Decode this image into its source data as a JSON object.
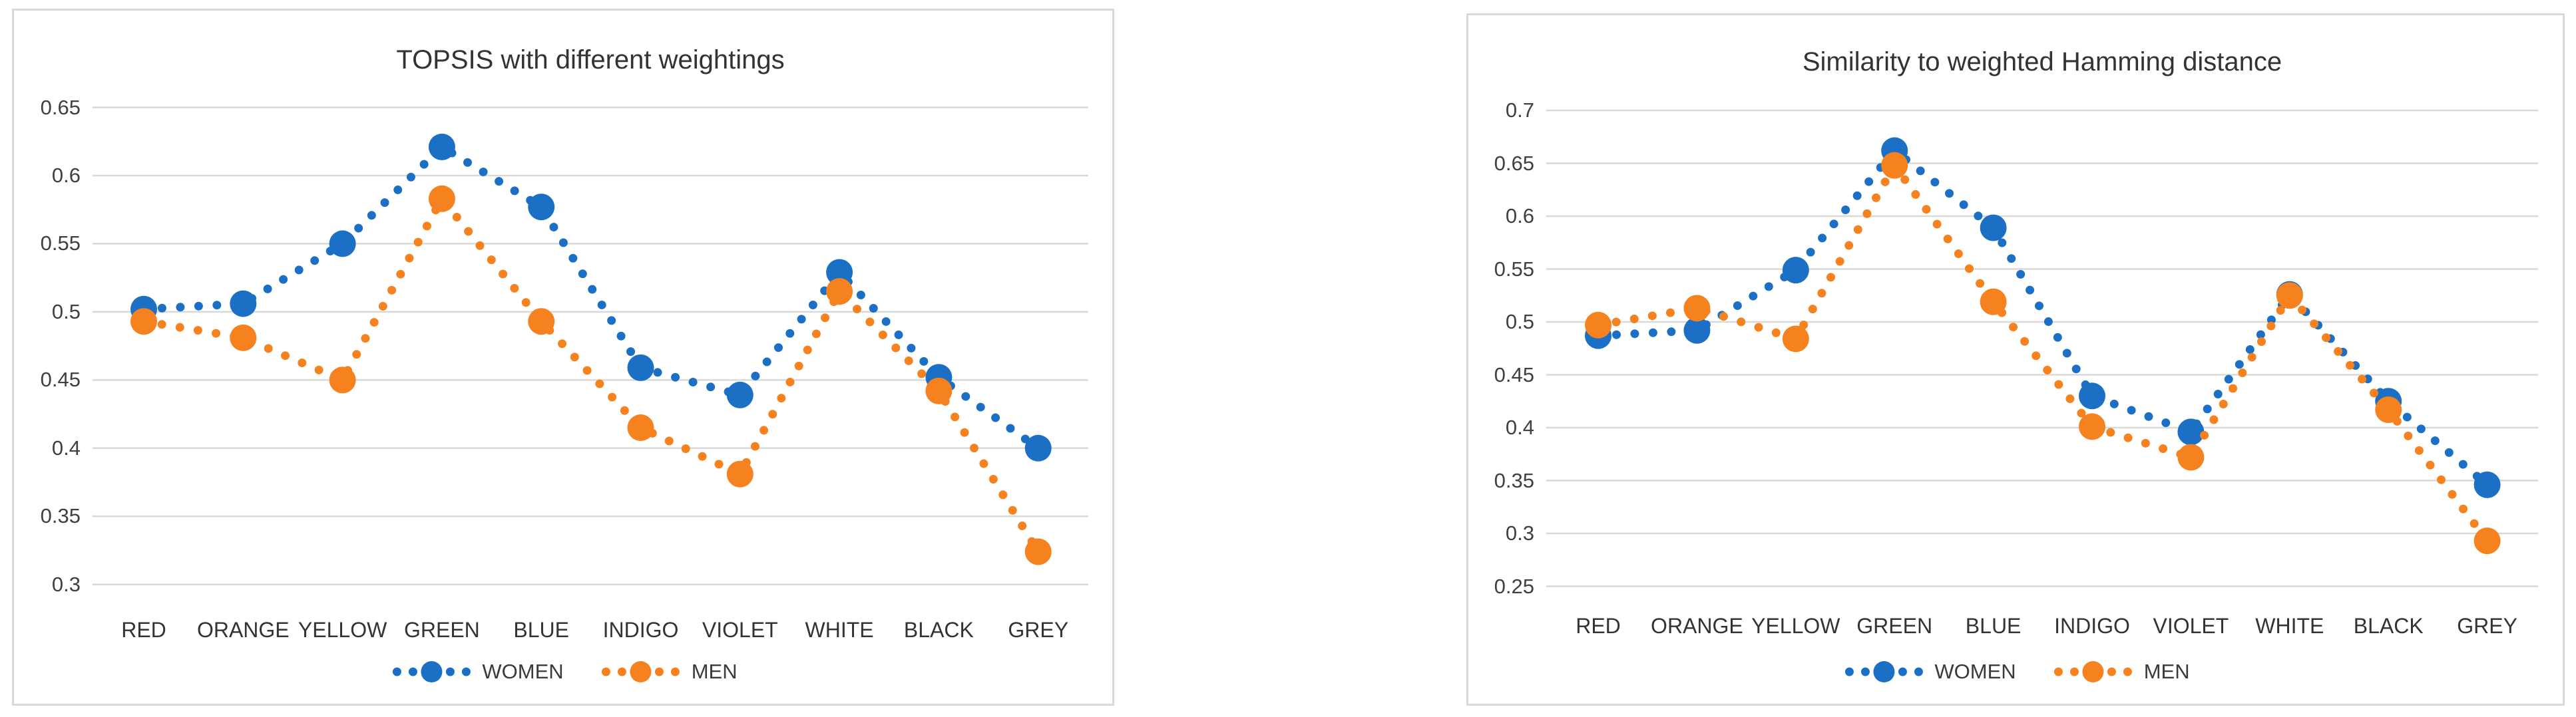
{
  "page": {
    "background_color": "#ffffff",
    "gridline_color": "#d9d9d9",
    "panel_border_color": "#d9d9d9",
    "axis_text_color": "#404040",
    "title_text_color": "#333333"
  },
  "chart_data": [
    {
      "type": "line",
      "title": "TOPSIS with different weightings",
      "categories": [
        "RED",
        "ORANGE",
        "YELLOW",
        "GREEN",
        "BLUE",
        "INDIGO",
        "VIOLET",
        "WHITE",
        "BLACK",
        "GREY"
      ],
      "series": [
        {
          "name": "WOMEN",
          "color": "#1b6fc4",
          "values": [
            0.502,
            0.506,
            0.55,
            0.621,
            0.577,
            0.459,
            0.439,
            0.529,
            0.452,
            0.4
          ]
        },
        {
          "name": "MEN",
          "color": "#f5821f",
          "values": [
            0.493,
            0.481,
            0.45,
            0.583,
            0.493,
            0.415,
            0.381,
            0.515,
            0.442,
            0.324
          ]
        }
      ],
      "ylim": [
        0.3,
        0.65
      ],
      "ytick_step": 0.05,
      "y_tick_labels": [
        "0.65",
        "0.6",
        "0.55",
        "0.5",
        "0.45",
        "0.4",
        "0.35",
        "0.3"
      ],
      "xlabel": "",
      "ylabel": "",
      "grid": true,
      "line_style": "dotted",
      "marker": "circle",
      "legend_position": "bottom"
    },
    {
      "type": "line",
      "title": "Similarity to weighted Hamming distance",
      "categories": [
        "RED",
        "ORANGE",
        "YELLOW",
        "GREEN",
        "BLUE",
        "INDIGO",
        "VIOLET",
        "WHITE",
        "BLACK",
        "GREY"
      ],
      "series": [
        {
          "name": "WOMEN",
          "color": "#1b6fc4",
          "values": [
            0.487,
            0.492,
            0.549,
            0.662,
            0.589,
            0.43,
            0.396,
            0.526,
            0.425,
            0.346
          ]
        },
        {
          "name": "MEN",
          "color": "#f5821f",
          "values": [
            0.497,
            0.513,
            0.484,
            0.648,
            0.519,
            0.401,
            0.372,
            0.525,
            0.417,
            0.293
          ]
        }
      ],
      "ylim": [
        0.25,
        0.7
      ],
      "ytick_step": 0.05,
      "y_tick_labels": [
        "0.7",
        "0.65",
        "0.6",
        "0.55",
        "0.5",
        "0.45",
        "0.4",
        "0.35",
        "0.3",
        "0.25"
      ],
      "xlabel": "",
      "ylabel": "",
      "grid": true,
      "line_style": "dotted",
      "marker": "circle",
      "legend_position": "bottom"
    }
  ]
}
